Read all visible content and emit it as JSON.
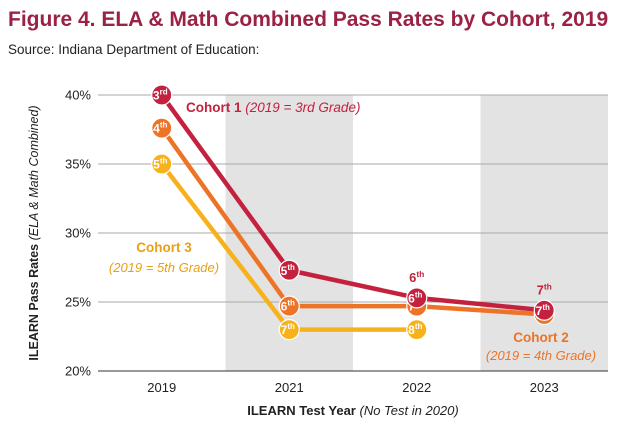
{
  "header": {
    "title": "Figure 4. ELA & Math Combined Pass Rates by Cohort, 2019",
    "source": "Source: Indiana Department of Education:"
  },
  "chart_data": {
    "type": "line",
    "title": "Figure 4. ELA & Math Combined Pass Rates by Cohort, 2019",
    "ylabel": "ILEARN Pass Rates",
    "ylabel_note": "(ELA & Math Combined)",
    "xlabel": "ILEARN Test Year",
    "xlabel_note": "(No Test in 2020)",
    "categories": [
      "2019",
      "2021",
      "2022",
      "2023"
    ],
    "y_ticks": [
      "40%",
      "35%",
      "30%",
      "25%",
      "20%"
    ],
    "ylim": [
      20,
      40
    ],
    "shaded_columns": [
      "2021",
      "2023"
    ],
    "grid": "horizontal",
    "series": [
      {
        "name": "Cohort 1",
        "name_note": "(2019 = 3rd Grade)",
        "color": "#c4213f",
        "x": [
          "2019",
          "2021",
          "2022",
          "2023"
        ],
        "values": [
          40.0,
          27.3,
          25.3,
          24.4
        ],
        "grades": [
          "3",
          "5",
          "6",
          "7"
        ],
        "suffixes": [
          "rd",
          "th",
          "th",
          "th"
        ]
      },
      {
        "name": "Cohort 2",
        "name_note": "(2019 = 4th Grade)",
        "color": "#ed7326",
        "x": [
          "2019",
          "2021",
          "2022",
          "2023"
        ],
        "values": [
          37.6,
          24.7,
          24.7,
          24.1
        ],
        "grades": [
          "4",
          "6",
          "7",
          "8"
        ],
        "suffixes": [
          "th",
          "th",
          "th",
          "th"
        ]
      },
      {
        "name": "Cohort 3",
        "name_note": "(2019 = 5th Grade)",
        "color": "#f7b21b",
        "x": [
          "2019",
          "2021",
          "2022"
        ],
        "values": [
          35.0,
          23.0,
          23.0
        ],
        "grades": [
          "5",
          "7",
          "8"
        ],
        "suffixes": [
          "th",
          "th",
          "th"
        ]
      }
    ]
  }
}
